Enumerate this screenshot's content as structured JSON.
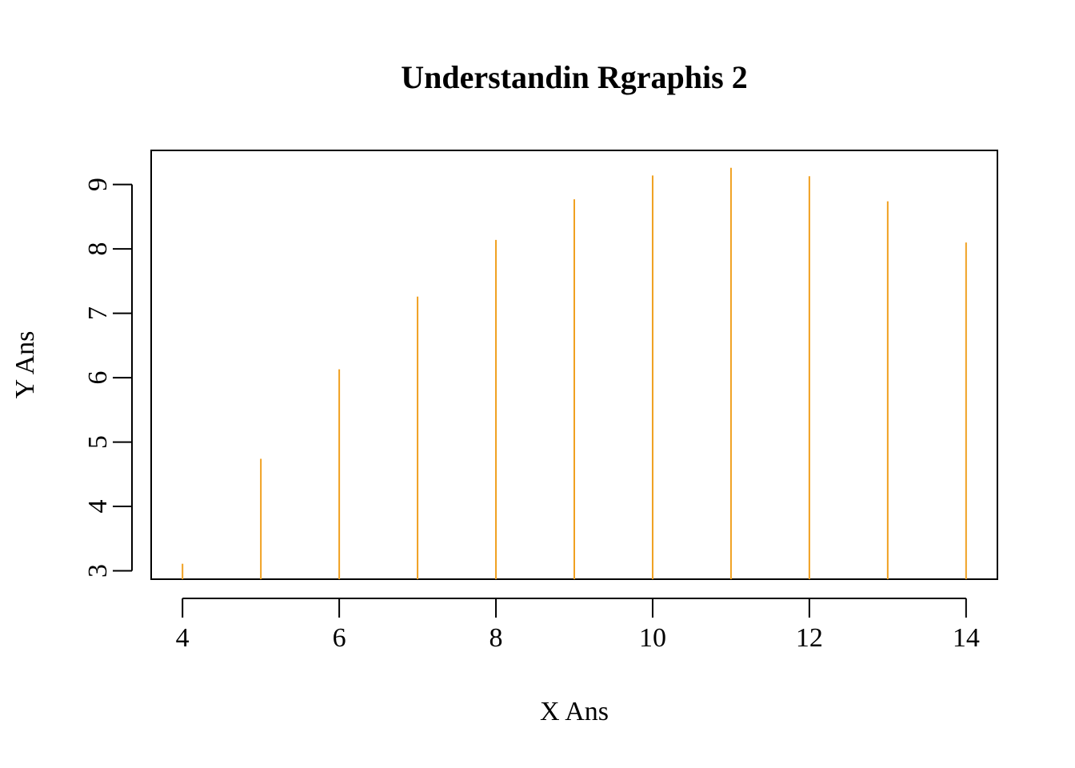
{
  "chart_data": {
    "type": "bar",
    "plot_style": "vertical lines (histogram-like, type h)",
    "title": "Understandin Rgraphis 2",
    "xlabel": "X Ans",
    "ylabel": "Y Ans",
    "x": [
      4,
      5,
      6,
      7,
      8,
      9,
      10,
      11,
      12,
      13,
      14
    ],
    "values": [
      3.11,
      4.74,
      6.13,
      7.26,
      8.14,
      8.77,
      9.14,
      9.26,
      9.13,
      8.74,
      8.1
    ],
    "xlim": [
      3.6,
      14.4
    ],
    "ylim": [
      2.87,
      9.53
    ],
    "x_ticks": [
      4,
      6,
      8,
      10,
      12,
      14
    ],
    "y_ticks": [
      3,
      4,
      5,
      6,
      7,
      8,
      9
    ],
    "x_tick_labels": [
      "4",
      "6",
      "8",
      "10",
      "12",
      "14"
    ],
    "y_tick_labels": [
      "3",
      "4",
      "5",
      "6",
      "7",
      "8",
      "9"
    ],
    "grid": false,
    "legend": "none",
    "colors": {
      "series": "#f0a020",
      "axes": "#000000",
      "background": "#ffffff"
    }
  }
}
